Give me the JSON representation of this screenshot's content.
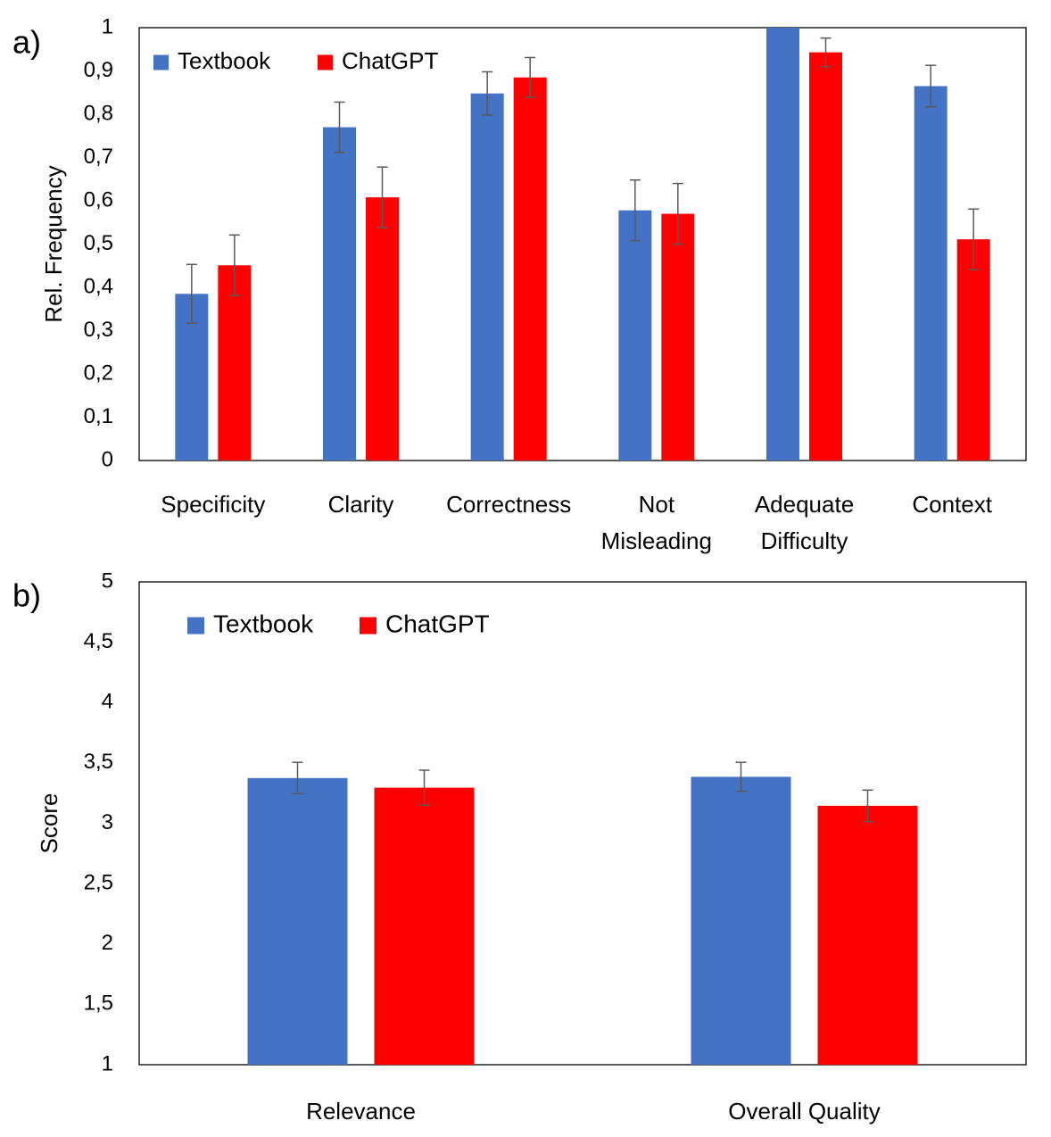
{
  "colors": {
    "textbook": "#4472C4",
    "chatgpt": "#FF0000",
    "error_bar": "#595959",
    "axis": "#000000"
  },
  "chart_data": [
    {
      "panel_label": "a)",
      "type": "bar",
      "title": "",
      "xlabel": "",
      "ylabel": "Rel. Frequency",
      "ylim": [
        0,
        1
      ],
      "yticks": [
        0,
        0.1,
        0.2,
        0.3,
        0.4,
        0.5,
        0.6,
        0.7,
        0.8,
        0.9,
        1
      ],
      "yticklabels": [
        "0",
        "0,1",
        "0,2",
        "0,3",
        "0,4",
        "0,5",
        "0,6",
        "0,7",
        "0,8",
        "0,9",
        "1"
      ],
      "categories": [
        [
          "Specificity"
        ],
        [
          "Clarity"
        ],
        [
          "Correctness"
        ],
        [
          "Not",
          "Misleading"
        ],
        [
          "Adequate",
          "Difficulty"
        ],
        [
          "Context"
        ]
      ],
      "grid": false,
      "legend_position": "top-left",
      "series": [
        {
          "name": "Textbook",
          "color": "#4472C4",
          "values": [
            0.385,
            0.77,
            0.848,
            0.578,
            1.0,
            0.865
          ],
          "errors": [
            0.068,
            0.058,
            0.05,
            0.07,
            0.0,
            0.048
          ]
        },
        {
          "name": "ChatGPT",
          "color": "#FF0000",
          "values": [
            0.451,
            0.608,
            0.885,
            0.57,
            0.943,
            0.511
          ],
          "errors": [
            0.07,
            0.07,
            0.046,
            0.07,
            0.033,
            0.07
          ]
        }
      ]
    },
    {
      "panel_label": "b)",
      "type": "bar",
      "title": "",
      "xlabel": "",
      "ylabel": "Score",
      "ylim": [
        1,
        5
      ],
      "yticks": [
        1,
        1.5,
        2,
        2.5,
        3,
        3.5,
        4,
        4.5,
        5
      ],
      "yticklabels": [
        "1",
        "1,5",
        "2",
        "2,5",
        "3",
        "3,5",
        "4",
        "4,5",
        "5"
      ],
      "categories": [
        [
          "Relevance"
        ],
        [
          "Overall Quality"
        ]
      ],
      "grid": false,
      "legend_position": "top-left",
      "series": [
        {
          "name": "Textbook",
          "color": "#4472C4",
          "values": [
            3.375,
            3.385
          ],
          "errors": [
            0.13,
            0.12
          ]
        },
        {
          "name": "ChatGPT",
          "color": "#FF0000",
          "values": [
            3.295,
            3.145
          ],
          "errors": [
            0.145,
            0.13
          ]
        }
      ]
    }
  ]
}
